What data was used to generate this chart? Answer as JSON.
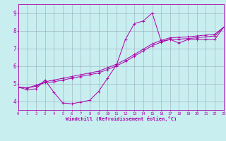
{
  "xlabel": "Windchill (Refroidissement éolien,°C)",
  "bg_color": "#c8eef0",
  "line_color": "#aa00aa",
  "grid_color": "#99aabb",
  "x_min": 0,
  "x_max": 23,
  "y_min": 3.5,
  "y_max": 9.5,
  "yticks": [
    4,
    5,
    6,
    7,
    8,
    9
  ],
  "xticks": [
    0,
    1,
    2,
    3,
    4,
    5,
    6,
    7,
    8,
    9,
    10,
    11,
    12,
    13,
    14,
    15,
    16,
    17,
    18,
    19,
    20,
    21,
    22,
    23
  ],
  "series1_x": [
    0,
    1,
    2,
    3,
    4,
    5,
    6,
    7,
    8,
    9,
    10,
    11,
    12,
    13,
    14,
    15,
    16,
    17,
    18,
    19,
    20,
    21,
    22,
    23
  ],
  "series1_y": [
    4.8,
    4.65,
    4.7,
    5.2,
    4.5,
    3.9,
    3.85,
    3.95,
    4.05,
    4.55,
    5.3,
    6.05,
    7.5,
    8.4,
    8.55,
    9.0,
    7.4,
    7.5,
    7.3,
    7.5,
    7.5,
    7.5,
    7.5,
    8.2
  ],
  "series2_x": [
    0,
    1,
    2,
    3,
    4,
    5,
    6,
    7,
    8,
    9,
    10,
    11,
    12,
    13,
    14,
    15,
    16,
    17,
    18,
    19,
    20,
    21,
    22,
    23
  ],
  "series2_y": [
    4.8,
    4.75,
    4.85,
    5.05,
    5.1,
    5.2,
    5.3,
    5.4,
    5.5,
    5.6,
    5.8,
    6.0,
    6.25,
    6.55,
    6.85,
    7.15,
    7.35,
    7.5,
    7.52,
    7.55,
    7.6,
    7.65,
    7.7,
    8.2
  ],
  "series3_x": [
    0,
    1,
    2,
    3,
    4,
    5,
    6,
    7,
    8,
    9,
    10,
    11,
    12,
    13,
    14,
    15,
    16,
    17,
    18,
    19,
    20,
    21,
    22,
    23
  ],
  "series3_y": [
    4.8,
    4.75,
    4.9,
    5.1,
    5.2,
    5.3,
    5.4,
    5.5,
    5.6,
    5.7,
    5.9,
    6.1,
    6.35,
    6.65,
    6.95,
    7.25,
    7.45,
    7.6,
    7.62,
    7.65,
    7.7,
    7.75,
    7.8,
    8.2
  ]
}
